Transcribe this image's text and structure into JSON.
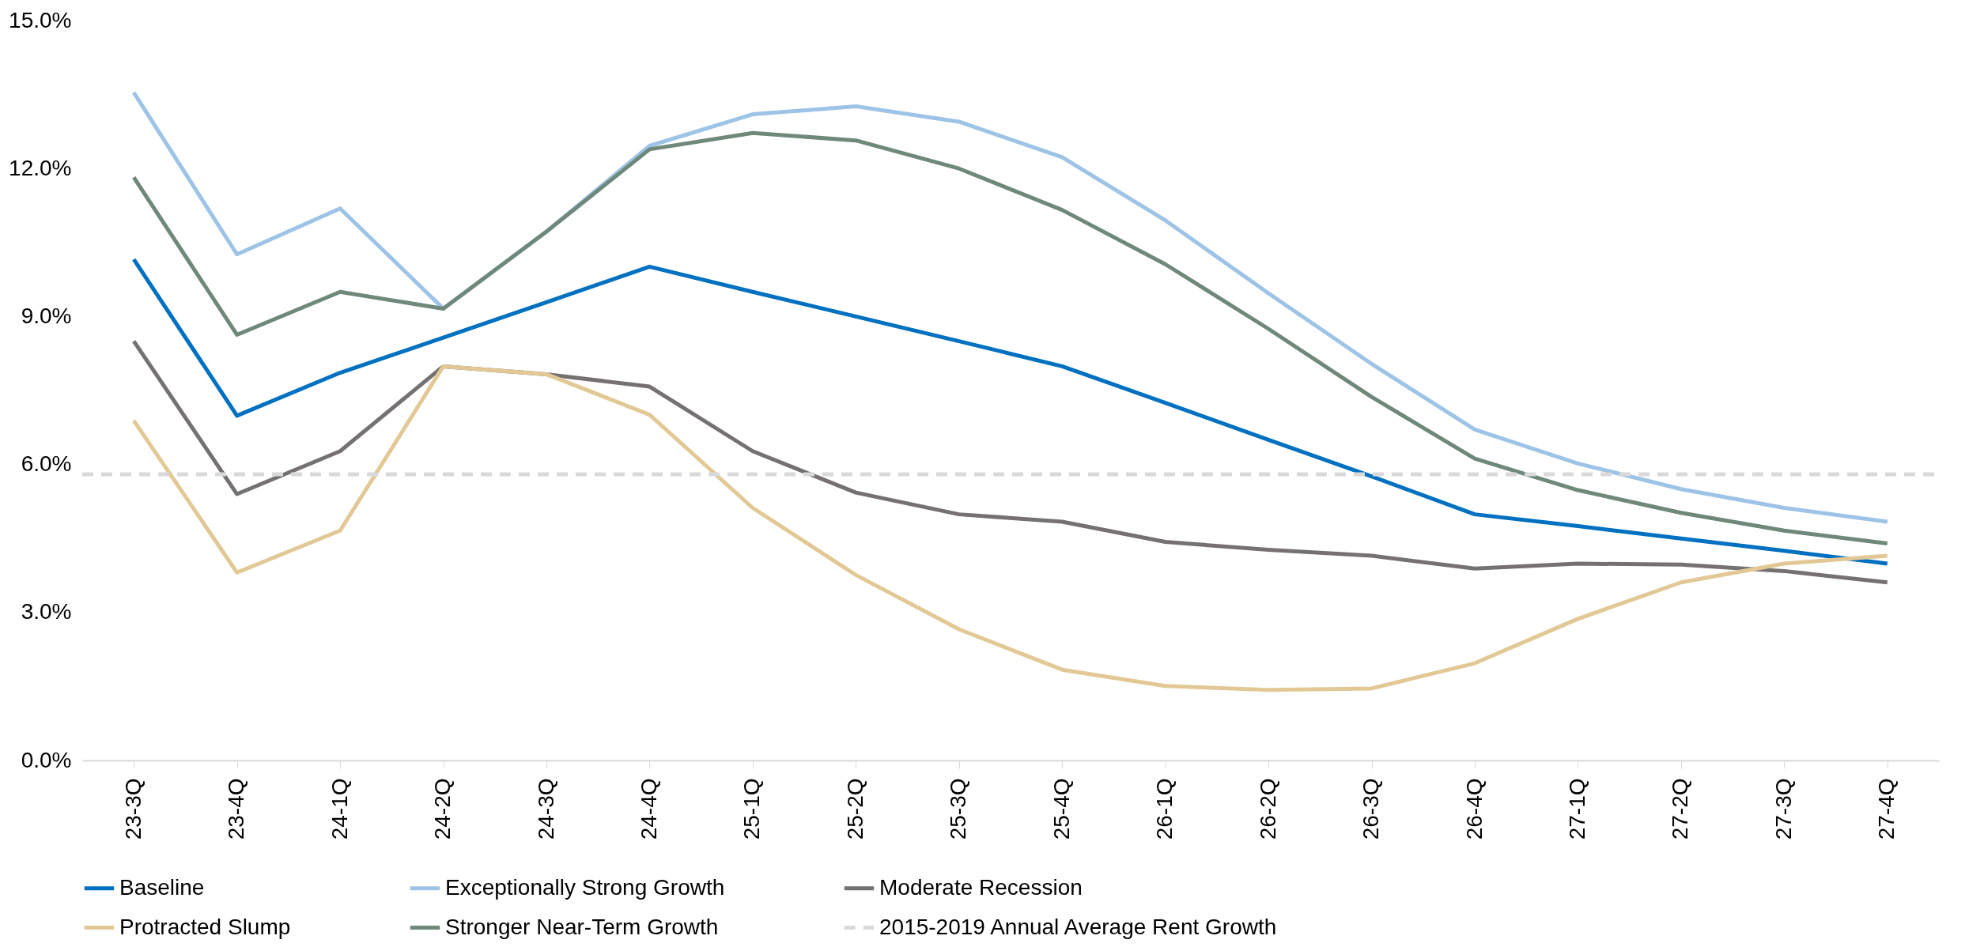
{
  "chart_data": {
    "type": "line",
    "categories": [
      "23-3Q",
      "23-4Q",
      "24-1Q",
      "24-2Q",
      "24-3Q",
      "24-4Q",
      "25-1Q",
      "25-2Q",
      "25-3Q",
      "25-4Q",
      "26-1Q",
      "26-2Q",
      "26-3Q",
      "26-4Q",
      "27-1Q",
      "27-2Q",
      "27-3Q",
      "27-4Q"
    ],
    "series": [
      {
        "name": "Baseline",
        "color": "#0070c0",
        "values": [
          10.16,
          6.99,
          7.86,
          8.57,
          9.29,
          10.01,
          9.5,
          9.0,
          8.5,
          7.99,
          7.25,
          6.5,
          5.76,
          4.99,
          4.75,
          4.5,
          4.25,
          3.99
        ]
      },
      {
        "name": "Exceptionally Strong Growth",
        "color": "#9dc3e6",
        "values": [
          13.54,
          10.26,
          11.19,
          9.16,
          10.72,
          12.46,
          13.1,
          13.26,
          12.95,
          12.23,
          10.95,
          9.47,
          8.04,
          6.71,
          6.02,
          5.5,
          5.12,
          4.84
        ]
      },
      {
        "name": "Moderate Recession",
        "color": "#767171",
        "values": [
          8.5,
          5.4,
          6.27,
          7.99,
          7.83,
          7.58,
          6.27,
          5.43,
          4.99,
          4.84,
          4.43,
          4.27,
          4.15,
          3.89,
          3.99,
          3.97,
          3.84,
          3.61
        ]
      },
      {
        "name": "Protracted Slump",
        "color": "#e2c895",
        "values": [
          6.89,
          3.81,
          4.66,
          7.99,
          7.83,
          7.01,
          5.12,
          3.76,
          2.66,
          1.84,
          1.51,
          1.43,
          1.46,
          1.97,
          2.87,
          3.61,
          3.99,
          4.15
        ]
      },
      {
        "name": "Stronger Near-Term Growth",
        "color": "#6e887a",
        "values": [
          11.82,
          8.63,
          9.5,
          9.16,
          10.72,
          12.39,
          12.72,
          12.57,
          12.0,
          11.16,
          10.06,
          8.75,
          7.37,
          6.12,
          5.48,
          5.02,
          4.66,
          4.4
        ]
      }
    ],
    "ref_lines": [
      {
        "axis": "y",
        "value": 5.8,
        "label": "2015-2019 Annual Average Rent Growth",
        "color": "#d9d9d9",
        "line_style": "dashed"
      }
    ],
    "ylim": [
      0,
      15
    ],
    "yticks": [
      {
        "value": 0,
        "label": "0.0%"
      },
      {
        "value": 3,
        "label": "3.0%"
      },
      {
        "value": 6,
        "label": "6.0%"
      },
      {
        "value": 9,
        "label": "9.0%"
      },
      {
        "value": 12,
        "label": "12.0%"
      },
      {
        "value": 15,
        "label": "15.0%"
      }
    ],
    "grid": false,
    "legend": "bottom",
    "line_style": "solid",
    "marker": "none"
  }
}
